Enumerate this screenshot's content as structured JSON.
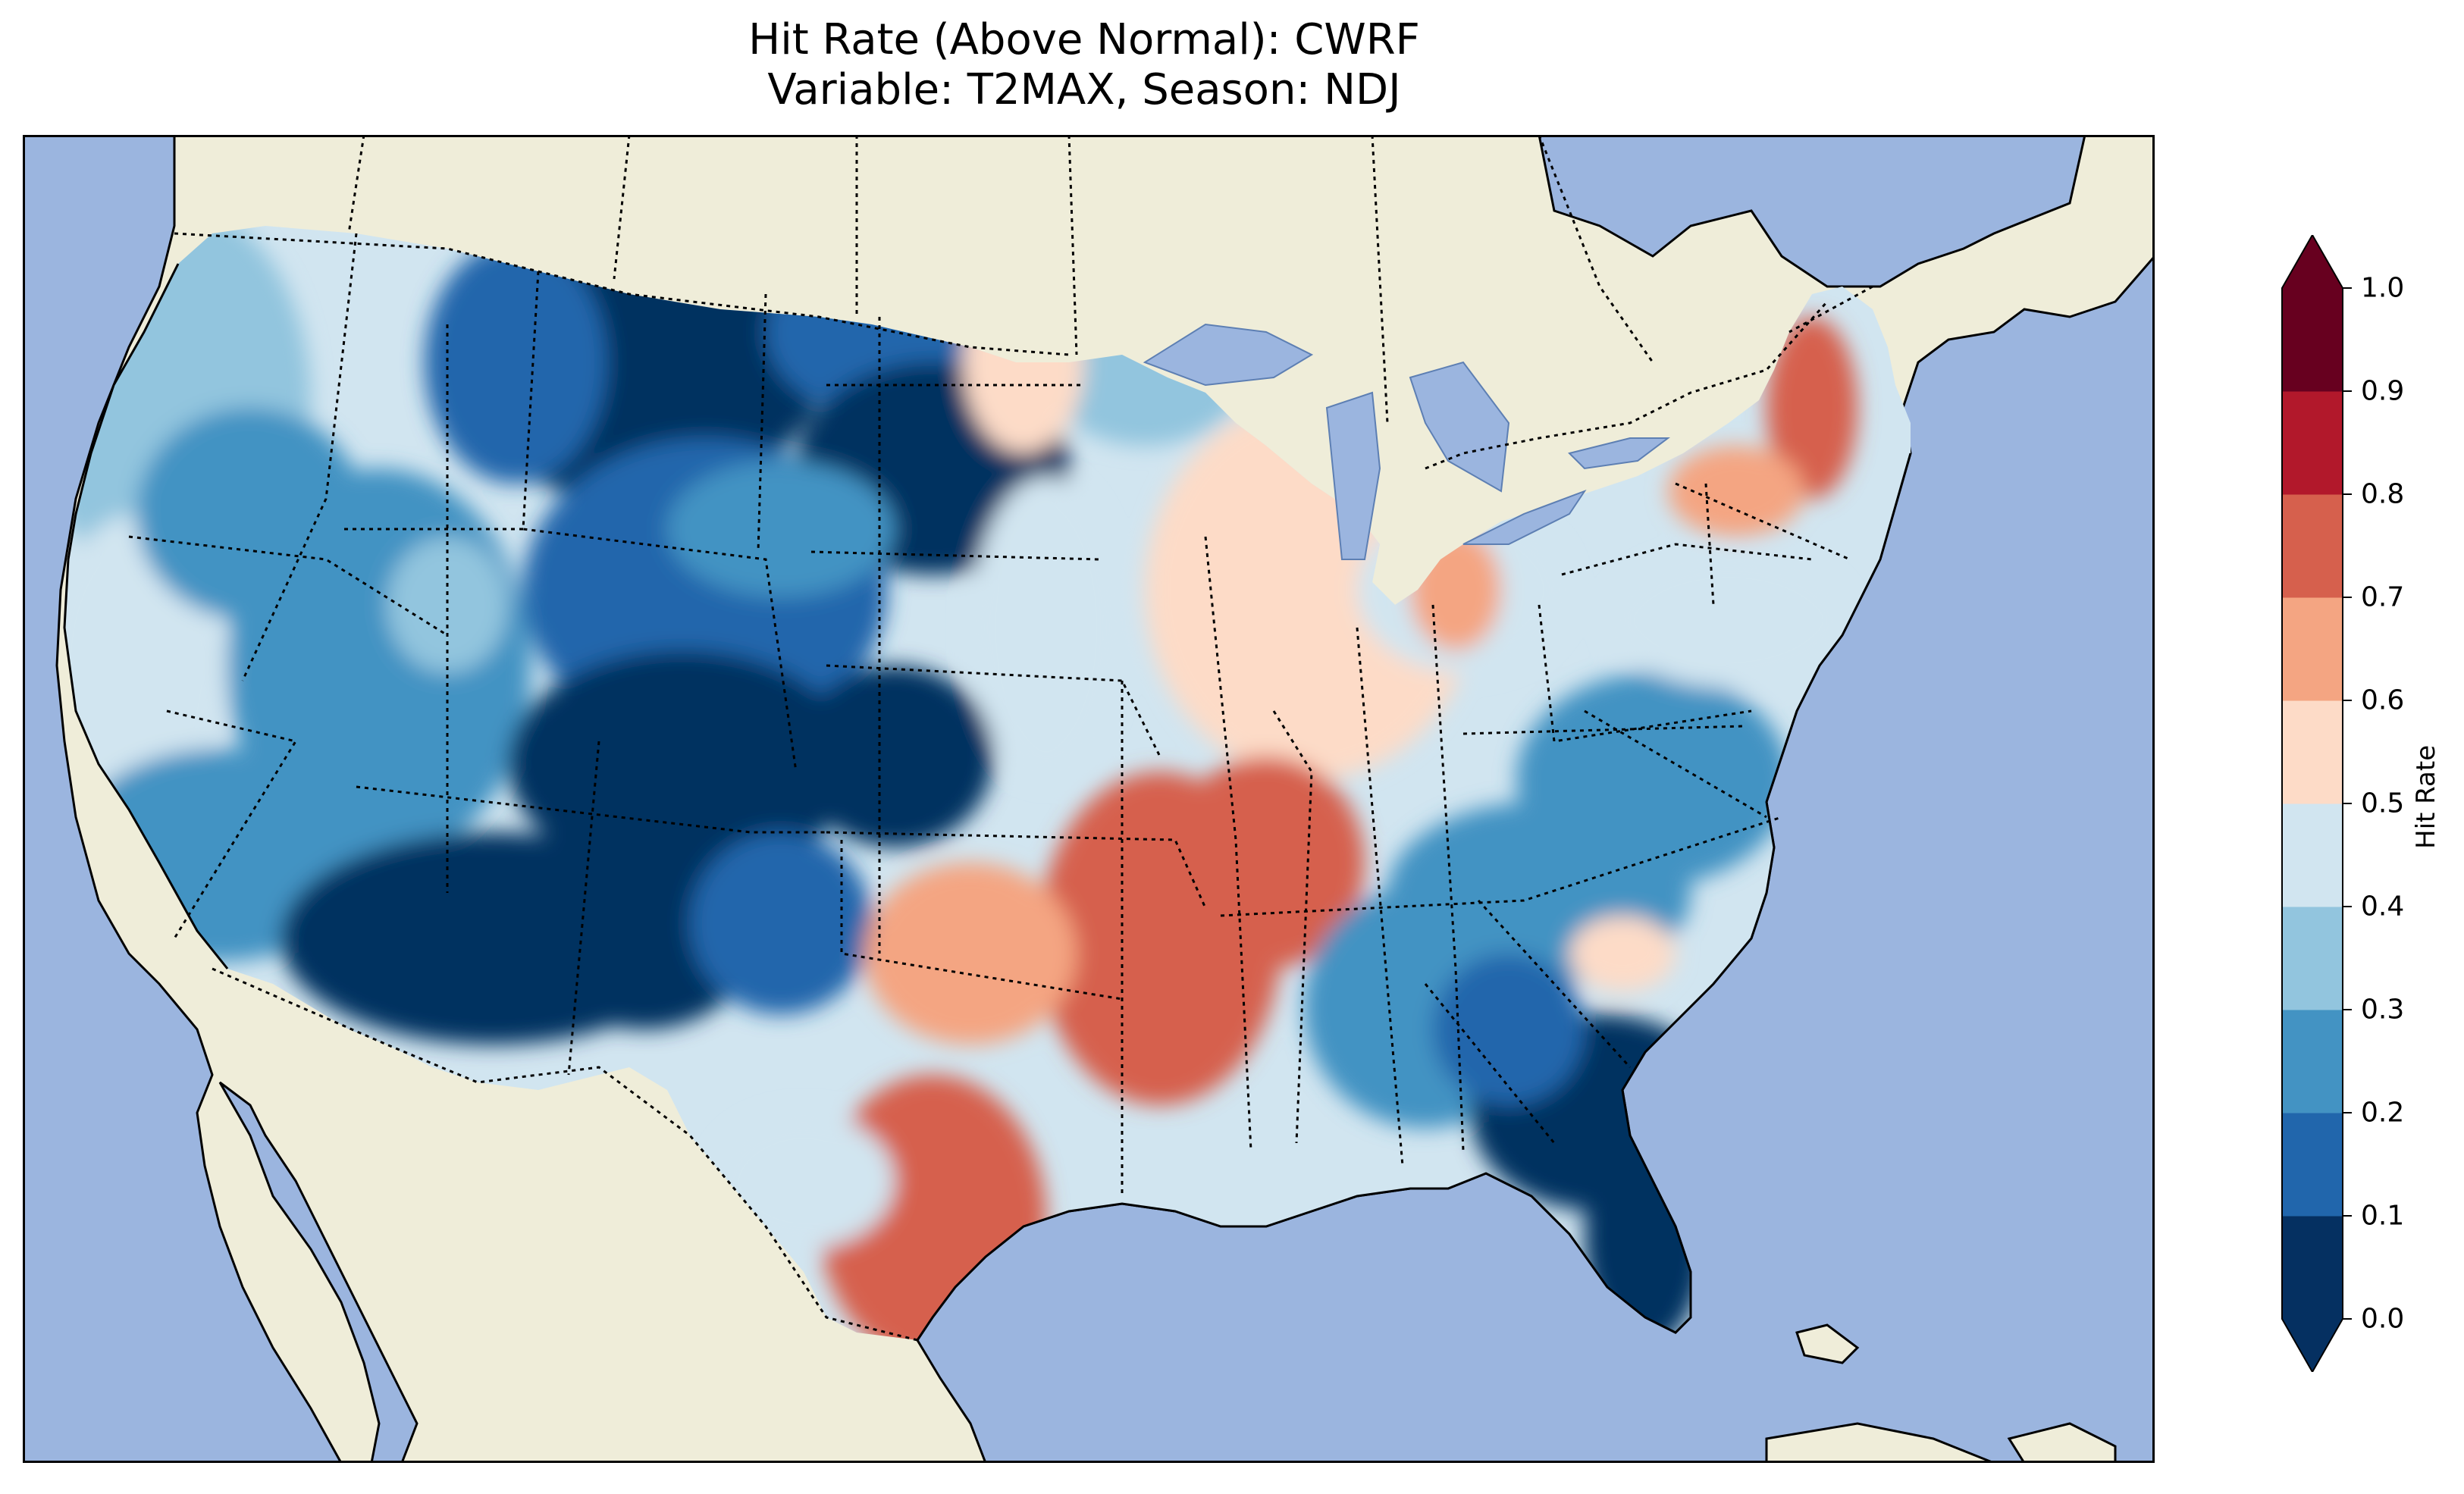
{
  "title": {
    "line1": "Hit Rate (Above Normal): CWRF",
    "line2": "Variable: T2MAX, Season: NDJ"
  },
  "colorbar": {
    "label": "Hit Rate",
    "ticks": [
      "0.0",
      "0.1",
      "0.2",
      "0.3",
      "0.4",
      "0.5",
      "0.6",
      "0.7",
      "0.8",
      "0.9",
      "1.0"
    ],
    "colors": [
      "#053061",
      "#2166ac",
      "#4393c3",
      "#92c5de",
      "#d1e5f0",
      "#fddbc7",
      "#f4a582",
      "#d6604d",
      "#b2182b",
      "#67001f"
    ],
    "under_color": "#053061",
    "over_color": "#67001f",
    "range": [
      0.0,
      1.0
    ]
  },
  "map": {
    "ocean_color": "#9bb5df",
    "land_color": "#efedd9",
    "projection": "Lambert Conformal (CONUS)",
    "field": "Hit Rate"
  }
}
